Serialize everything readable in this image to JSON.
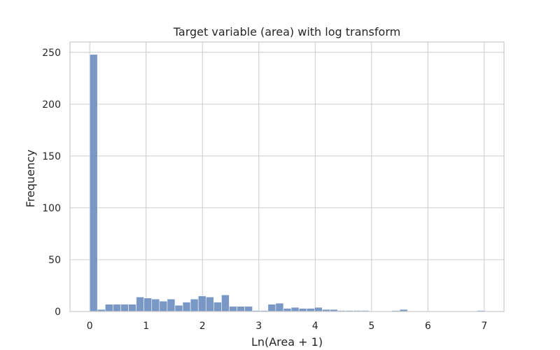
{
  "chart_data": {
    "type": "bar",
    "title": "Target variable (area) with log transform",
    "xlabel": "Ln(Area + 1)",
    "ylabel": "Frequency",
    "xlim": [
      -0.35,
      7.35
    ],
    "ylim": [
      0,
      260
    ],
    "xticks": [
      0,
      1,
      2,
      3,
      4,
      5,
      6,
      7
    ],
    "yticks": [
      0,
      50,
      100,
      150,
      200,
      250
    ],
    "grid": true,
    "bin_start": 0.0,
    "bin_width": 0.1375,
    "values": [
      248,
      2,
      7,
      7,
      7,
      7,
      14,
      13,
      12,
      10,
      12,
      6,
      9,
      12,
      15,
      14,
      9,
      16,
      5,
      5,
      5,
      1,
      1,
      7,
      8,
      3,
      4,
      3,
      3,
      4,
      2,
      2,
      1,
      1,
      1,
      1,
      0,
      0,
      0,
      1,
      2,
      0,
      0,
      0,
      0,
      0,
      0,
      0,
      0,
      0,
      1
    ]
  }
}
